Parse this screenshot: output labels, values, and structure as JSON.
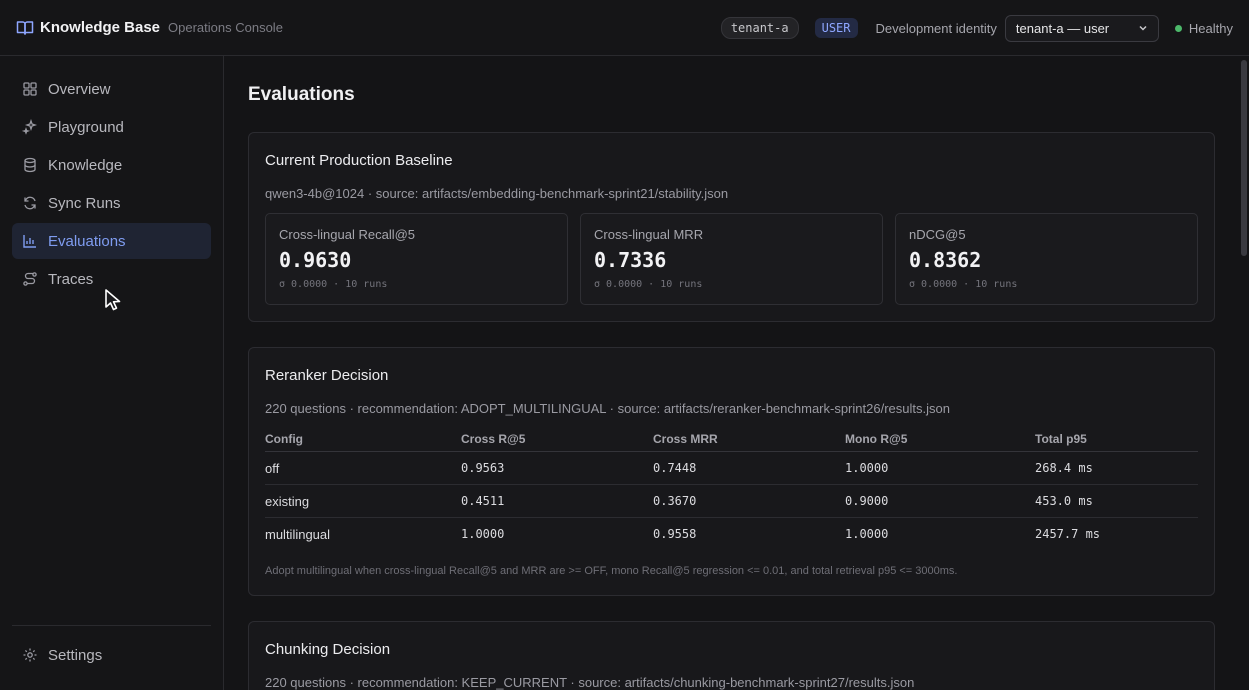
{
  "header": {
    "app_title": "Knowledge Base",
    "app_subtitle": "Operations Console",
    "tenant": "tenant-a",
    "role": "USER",
    "identity_label": "Development identity",
    "identity_value": "tenant-a — user",
    "health": "Healthy",
    "health_color": "#4cb86a"
  },
  "sidebar": {
    "items": [
      {
        "label": "Overview",
        "icon": "grid-icon"
      },
      {
        "label": "Playground",
        "icon": "sparkles-icon"
      },
      {
        "label": "Knowledge",
        "icon": "database-icon"
      },
      {
        "label": "Sync Runs",
        "icon": "refresh-icon"
      },
      {
        "label": "Evaluations",
        "icon": "bar-chart-icon",
        "active": true
      },
      {
        "label": "Traces",
        "icon": "route-icon"
      }
    ],
    "settings_label": "Settings"
  },
  "page": {
    "title": "Evaluations"
  },
  "baseline": {
    "title": "Current Production Baseline",
    "source": "qwen3-4b@1024 · source: artifacts/embedding-benchmark-sprint21/stability.json",
    "metrics": [
      {
        "label": "Cross-lingual Recall@5",
        "value": "0.9630",
        "meta": "σ 0.0000 · 10 runs"
      },
      {
        "label": "Cross-lingual MRR",
        "value": "0.7336",
        "meta": "σ 0.0000 · 10 runs"
      },
      {
        "label": "nDCG@5",
        "value": "0.8362",
        "meta": "σ 0.0000 · 10 runs"
      }
    ]
  },
  "reranker": {
    "title": "Reranker Decision",
    "source": "220 questions · recommendation: ADOPT_MULTILINGUAL · source: artifacts/reranker-benchmark-sprint26/results.json",
    "columns": [
      "Config",
      "Cross R@5",
      "Cross MRR",
      "Mono R@5",
      "Total p95"
    ],
    "rows": [
      [
        "off",
        "0.9563",
        "0.7448",
        "1.0000",
        "268.4 ms"
      ],
      [
        "existing",
        "0.4511",
        "0.3670",
        "0.9000",
        "453.0 ms"
      ],
      [
        "multilingual",
        "1.0000",
        "0.9558",
        "1.0000",
        "2457.7 ms"
      ]
    ],
    "footnote": "Adopt multilingual when cross-lingual Recall@5 and MRR are >= OFF, mono Recall@5 regression <= 0.01, and total retrieval p95 <= 3000ms."
  },
  "chunking": {
    "title": "Chunking Decision",
    "source": "220 questions · recommendation: KEEP_CURRENT · source: artifacts/chunking-benchmark-sprint27/results.json"
  }
}
